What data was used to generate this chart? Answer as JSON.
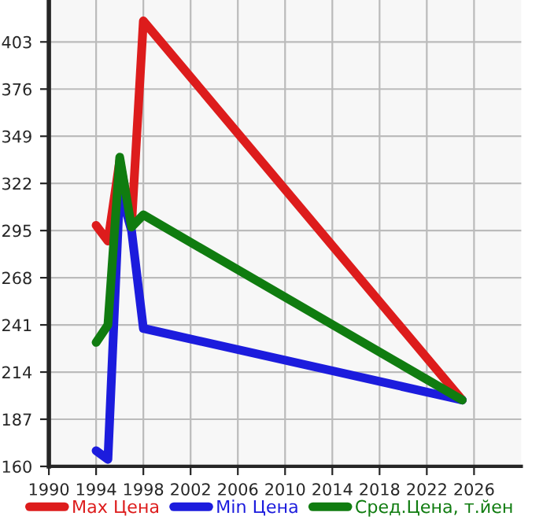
{
  "chart_data": {
    "type": "line",
    "x": [
      1994,
      1995,
      1996,
      1997,
      1998,
      2025
    ],
    "series": [
      {
        "name": "Max Цена",
        "color": "#dd1c1c",
        "values": [
          298,
          289,
          335,
          298,
          415,
          198
        ]
      },
      {
        "name": "Min Цена",
        "color": "#1c1cdd",
        "values": [
          169,
          164,
          319,
          295,
          239,
          198
        ]
      },
      {
        "name": "Сред.Цена, т.йен",
        "color": "#107c10",
        "values": [
          231,
          241,
          337,
          297,
          304,
          198
        ]
      }
    ],
    "xlim": [
      1990,
      2030
    ],
    "xticks": [
      1990,
      1994,
      1998,
      2002,
      2006,
      2010,
      2014,
      2018,
      2022,
      2026
    ],
    "ylim": [
      160,
      427
    ],
    "yticks": [
      160,
      187,
      214,
      241,
      268,
      295,
      322,
      349,
      376,
      403
    ],
    "grid": true,
    "legend": "bottom",
    "marker": "none",
    "line_style": "solid"
  }
}
